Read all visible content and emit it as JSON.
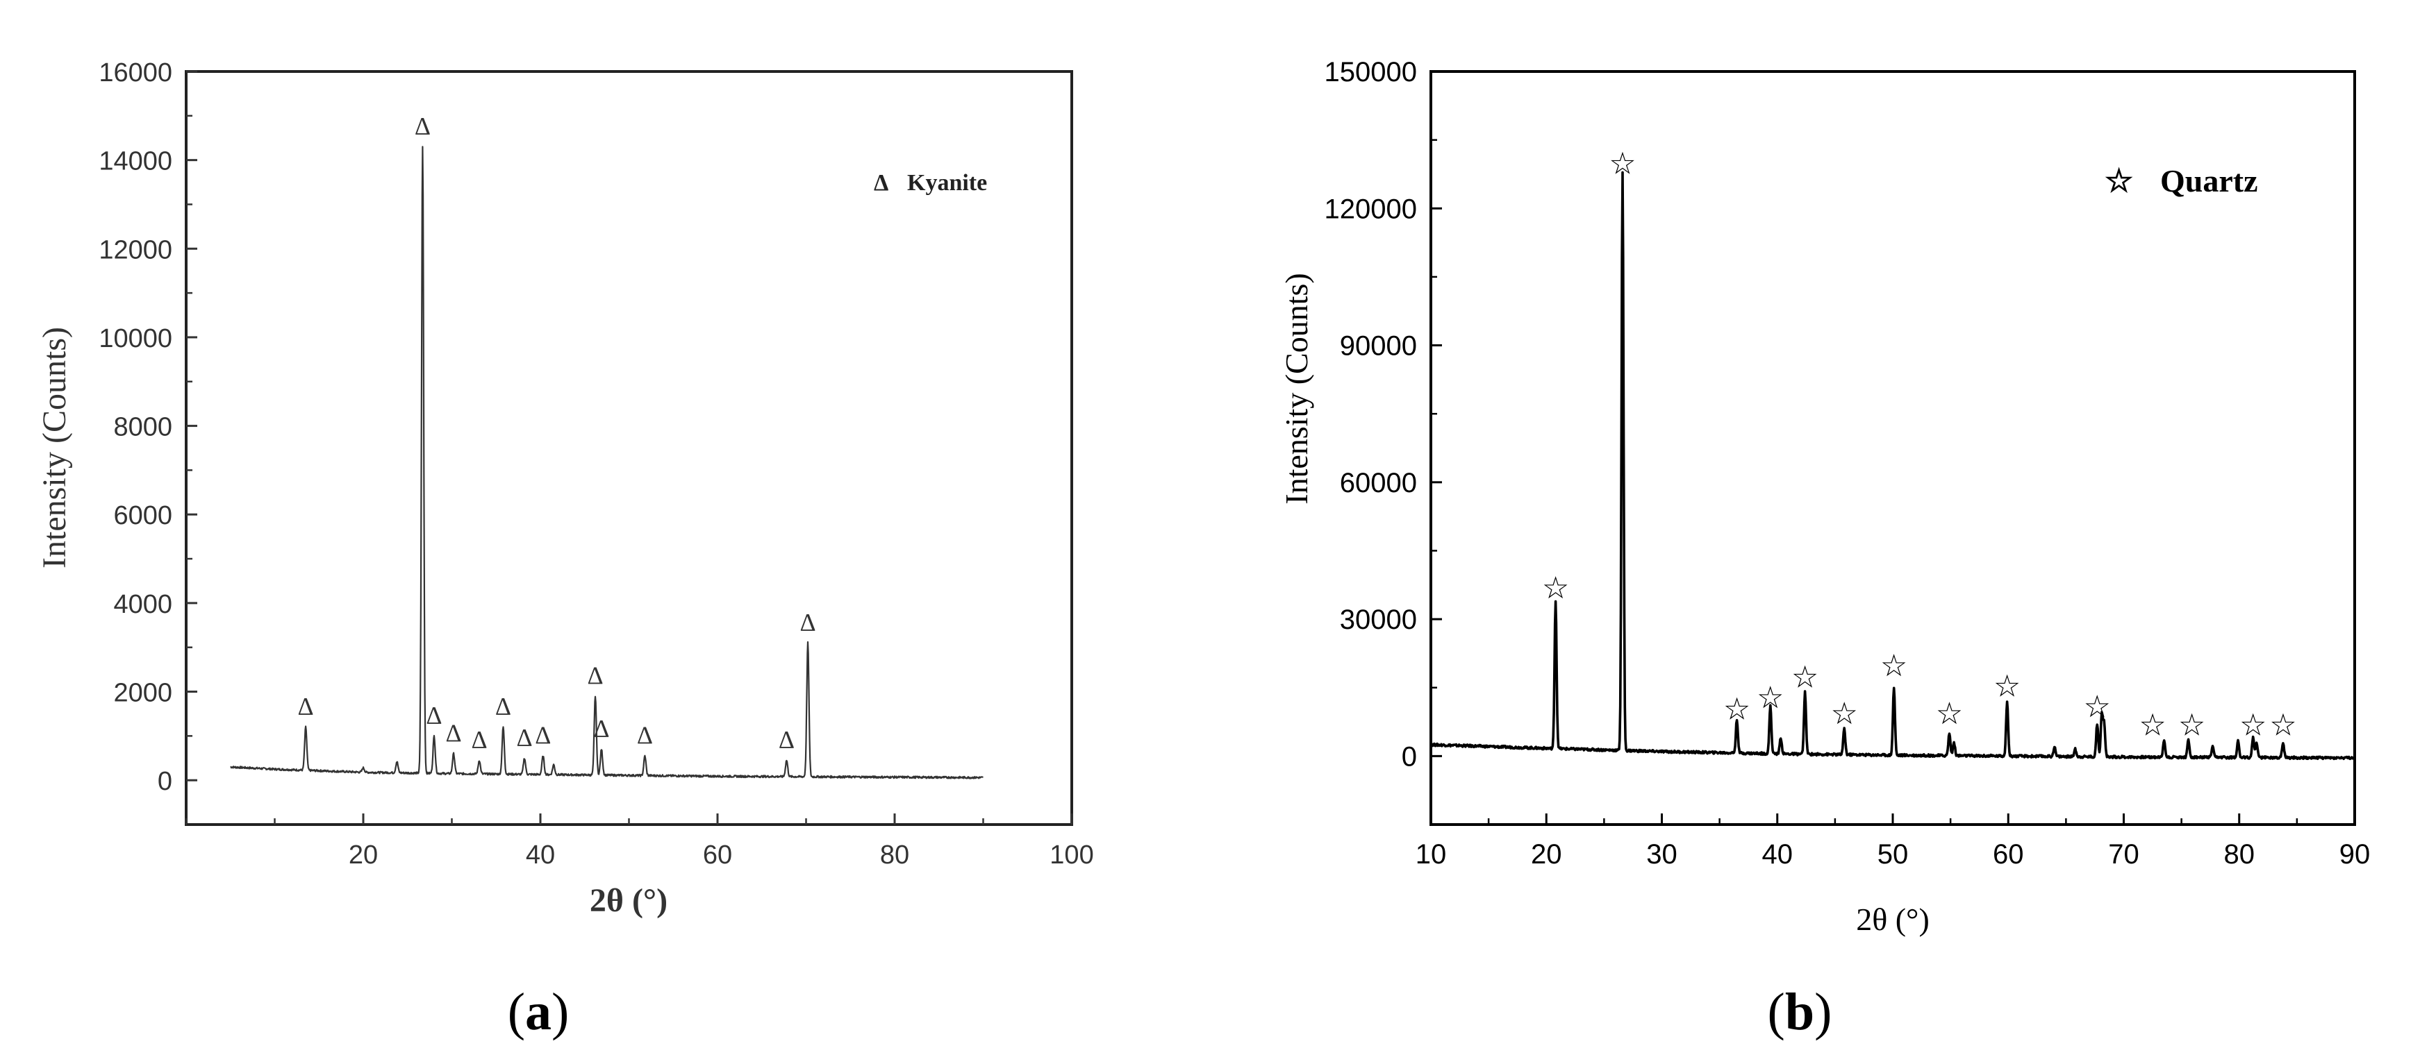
{
  "figure": {
    "panels": [
      {
        "label_open": "(",
        "label_letter": "a",
        "label_close": ")"
      },
      {
        "label_open": "(",
        "label_letter": "b",
        "label_close": ")"
      }
    ]
  },
  "chart_data": [
    {
      "type": "line",
      "panel": "a",
      "title": "",
      "xlabel": "2θ (°)",
      "ylabel": "Intensity (Counts)",
      "xlim": [
        0,
        100
      ],
      "ylim": [
        -1000,
        16000
      ],
      "x_ticks": [
        20,
        40,
        60,
        80,
        100
      ],
      "y_ticks": [
        0,
        2000,
        4000,
        6000,
        8000,
        10000,
        12000,
        14000,
        16000
      ],
      "x_tick_labels": [
        "20",
        "40",
        "60",
        "80",
        "100"
      ],
      "y_tick_labels": [
        "0",
        "2000",
        "4000",
        "6000",
        "8000",
        "10000",
        "12000",
        "14000",
        "16000"
      ],
      "grid": false,
      "legend": {
        "position": "top-right",
        "marker": "Δ",
        "label": "Kyanite"
      },
      "series": [
        {
          "name": "Kyanite",
          "baseline": [
            [
              5,
              300
            ],
            [
              10,
              250
            ],
            [
              20,
              180
            ],
            [
              30,
              150
            ],
            [
              40,
              130
            ],
            [
              50,
              110
            ],
            [
              60,
              90
            ],
            [
              70,
              80
            ],
            [
              80,
              70
            ],
            [
              90,
              60
            ]
          ],
          "peaks": [
            {
              "x": 13.5,
              "y": 1200
            },
            {
              "x": 20.0,
              "y": 280
            },
            {
              "x": 23.8,
              "y": 420
            },
            {
              "x": 26.7,
              "y": 14300
            },
            {
              "x": 28.0,
              "y": 1000
            },
            {
              "x": 30.2,
              "y": 600
            },
            {
              "x": 33.1,
              "y": 450
            },
            {
              "x": 35.8,
              "y": 1200
            },
            {
              "x": 38.2,
              "y": 500
            },
            {
              "x": 40.3,
              "y": 550
            },
            {
              "x": 41.5,
              "y": 350
            },
            {
              "x": 46.2,
              "y": 1900
            },
            {
              "x": 46.9,
              "y": 700
            },
            {
              "x": 51.8,
              "y": 550
            },
            {
              "x": 67.8,
              "y": 450
            },
            {
              "x": 70.2,
              "y": 3100
            }
          ],
          "markers": [
            13.5,
            26.7,
            28.0,
            30.2,
            33.1,
            35.8,
            38.2,
            40.3,
            46.2,
            46.9,
            51.8,
            67.8,
            70.2
          ],
          "marker_symbol": "Δ"
        }
      ]
    },
    {
      "type": "line",
      "panel": "b",
      "title": "",
      "xlabel": "2θ (°)",
      "ylabel": "Intensity (Counts)",
      "xlim": [
        10,
        90
      ],
      "ylim": [
        -15000,
        150000
      ],
      "x_ticks": [
        10,
        20,
        30,
        40,
        50,
        60,
        70,
        80,
        90
      ],
      "y_ticks": [
        0,
        30000,
        60000,
        90000,
        120000,
        150000
      ],
      "x_tick_labels": [
        "10",
        "20",
        "30",
        "40",
        "50",
        "60",
        "70",
        "80",
        "90"
      ],
      "y_tick_labels": [
        "0",
        "30000",
        "60000",
        "90000",
        "120000",
        "150000"
      ],
      "grid": false,
      "legend": {
        "position": "top-right",
        "marker": "☆",
        "label": "Quartz"
      },
      "series": [
        {
          "name": "Quartz",
          "baseline": [
            [
              10,
              2500
            ],
            [
              20,
              1700
            ],
            [
              30,
              1000
            ],
            [
              40,
              500
            ],
            [
              50,
              200
            ],
            [
              60,
              0
            ],
            [
              70,
              -200
            ],
            [
              80,
              -300
            ],
            [
              90,
              -400
            ]
          ],
          "peaks": [
            {
              "x": 20.8,
              "y": 34000
            },
            {
              "x": 26.6,
              "y": 128000
            },
            {
              "x": 36.5,
              "y": 8000
            },
            {
              "x": 39.4,
              "y": 11000
            },
            {
              "x": 40.3,
              "y": 4000
            },
            {
              "x": 42.4,
              "y": 14000
            },
            {
              "x": 45.8,
              "y": 6000
            },
            {
              "x": 50.1,
              "y": 15000
            },
            {
              "x": 54.9,
              "y": 5000
            },
            {
              "x": 55.3,
              "y": 3000
            },
            {
              "x": 59.9,
              "y": 12000
            },
            {
              "x": 64.0,
              "y": 2000
            },
            {
              "x": 65.8,
              "y": 1500
            },
            {
              "x": 67.7,
              "y": 7000
            },
            {
              "x": 68.1,
              "y": 9000
            },
            {
              "x": 68.3,
              "y": 7000
            },
            {
              "x": 73.5,
              "y": 3500
            },
            {
              "x": 75.6,
              "y": 3500
            },
            {
              "x": 77.7,
              "y": 2000
            },
            {
              "x": 79.9,
              "y": 3500
            },
            {
              "x": 81.2,
              "y": 4000
            },
            {
              "x": 81.5,
              "y": 3000
            },
            {
              "x": 83.8,
              "y": 3000
            }
          ],
          "markers": [
            {
              "x": 20.8,
              "y": 37000
            },
            {
              "x": 26.6,
              "y": 130000
            },
            {
              "x": 36.5,
              "y": 10500
            },
            {
              "x": 39.4,
              "y": 13000
            },
            {
              "x": 42.4,
              "y": 17500
            },
            {
              "x": 45.8,
              "y": 9500
            },
            {
              "x": 50.1,
              "y": 20000
            },
            {
              "x": 54.9,
              "y": 9500
            },
            {
              "x": 59.9,
              "y": 15500
            },
            {
              "x": 67.7,
              "y": 11000
            },
            {
              "x": 72.5,
              "y": 7000
            },
            {
              "x": 75.9,
              "y": 7000
            },
            {
              "x": 81.2,
              "y": 7000
            },
            {
              "x": 83.8,
              "y": 7000
            }
          ],
          "marker_symbol": "☆"
        }
      ]
    }
  ]
}
